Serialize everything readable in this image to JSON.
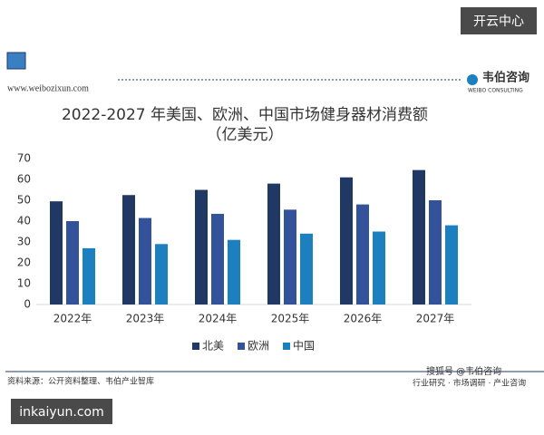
{
  "header": {
    "badge": "开云中心",
    "website": "www.weibozixun.com",
    "brand": "韦伯咨询",
    "brand_en": "WEIBO CONSULTING"
  },
  "chart_data": {
    "type": "bar",
    "title": "2022-2027 年美国、欧洲、中国市场健身器材消费额",
    "subtitle": "（亿美元）",
    "categories": [
      "2022年",
      "2023年",
      "2024年",
      "2025年",
      "2026年",
      "2027年"
    ],
    "series": [
      {
        "name": "北美",
        "color": "#1f3864",
        "values": [
          49.5,
          52.5,
          55,
          58,
          61,
          64.5
        ]
      },
      {
        "name": "欧洲",
        "color": "#34529a",
        "values": [
          40,
          41.5,
          43.5,
          45.5,
          48,
          50
        ]
      },
      {
        "name": "中国",
        "color": "#1b7fc0",
        "values": [
          27,
          29,
          31,
          34,
          35,
          38
        ]
      }
    ],
    "ylim": [
      0,
      70
    ],
    "yticks": [
      0,
      10,
      20,
      30,
      40,
      50,
      60,
      70
    ],
    "grid": false,
    "legend": "bottom"
  },
  "footer": {
    "source": "资料来源：公开资料整理、韦伯产业智库",
    "tagline": "行业研究 · 市场调研 · 产业咨询",
    "account": "搜狐号 @韦伯咨询",
    "domain": "inkaiyun.com"
  }
}
